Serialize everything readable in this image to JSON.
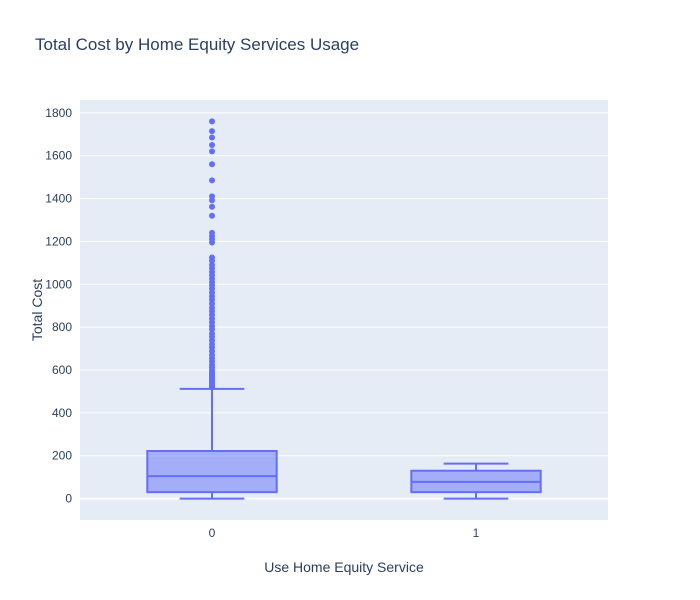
{
  "chart_data": {
    "type": "box",
    "title": "Total Cost by Home Equity Services Usage",
    "xlabel": "Use Home Equity Service",
    "ylabel": "Total Cost",
    "categories": [
      "0",
      "1"
    ],
    "ylim": [
      -100,
      1860
    ],
    "yticks": [
      0,
      200,
      400,
      600,
      800,
      1000,
      1200,
      1400,
      1600,
      1800
    ],
    "grid": true,
    "boxes": [
      {
        "category": "0",
        "min": 0,
        "q1": 30,
        "median": 105,
        "q3": 222,
        "upper_fence": 512,
        "outliers": [
          520,
          525,
          530,
          538,
          545,
          552,
          560,
          568,
          575,
          582,
          590,
          600,
          612,
          625,
          640,
          655,
          670,
          688,
          705,
          720,
          738,
          755,
          770,
          790,
          805,
          822,
          840,
          858,
          875,
          890,
          910,
          928,
          945,
          962,
          980,
          995,
          1010,
          1025,
          1042,
          1058,
          1075,
          1090,
          1110,
          1125,
          1195,
          1210,
          1225,
          1240,
          1320,
          1362,
          1392,
          1410,
          1485,
          1560,
          1620,
          1650,
          1685,
          1715,
          1760
        ]
      },
      {
        "category": "1",
        "min": 0,
        "q1": 30,
        "median": 78,
        "q3": 130,
        "upper_fence": 163,
        "outliers": []
      }
    ],
    "colors": {
      "box_line": "#636efa",
      "box_fill": "rgba(99,110,250,0.5)",
      "plot_bg": "#e5ecf6",
      "grid": "#ffffff",
      "text": "#2a3f5f"
    }
  }
}
